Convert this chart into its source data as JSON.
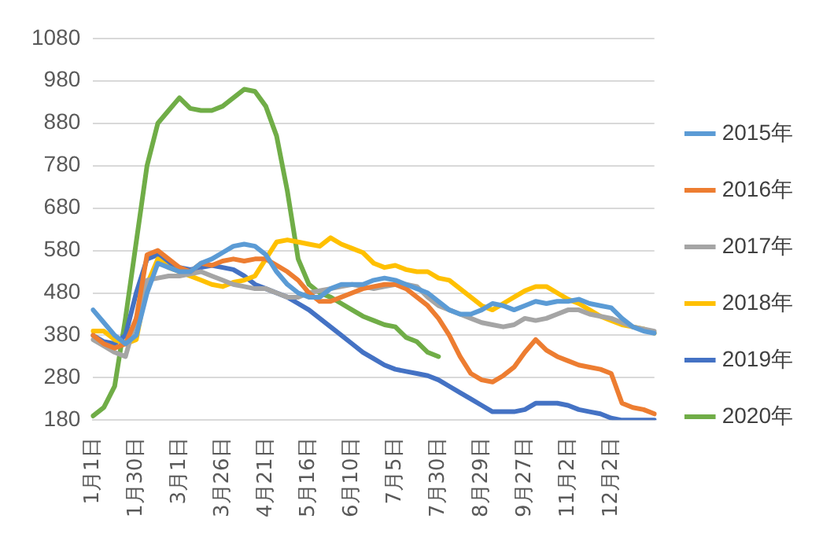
{
  "chart_data": {
    "type": "line",
    "categories": [
      "1月1日",
      null,
      null,
      null,
      "1月30日",
      null,
      null,
      null,
      "3月1日",
      null,
      null,
      null,
      "3月26日",
      null,
      null,
      null,
      "4月21日",
      null,
      null,
      null,
      "5月16日",
      null,
      null,
      null,
      "6月10日",
      null,
      null,
      null,
      "7月5日",
      null,
      null,
      null,
      "7月30日",
      null,
      null,
      null,
      "8月29日",
      null,
      null,
      null,
      "9月27日",
      null,
      null,
      null,
      "11月2日",
      null,
      null,
      null,
      "12月2日",
      null,
      null,
      null,
      null
    ],
    "series": [
      {
        "name": "2015年",
        "color": "#5b9bd5",
        "values": [
          440,
          410,
          380,
          360,
          380,
          480,
          550,
          540,
          530,
          530,
          550,
          560,
          575,
          590,
          595,
          590,
          570,
          530,
          500,
          480,
          470,
          470,
          490,
          500,
          500,
          500,
          510,
          515,
          510,
          500,
          490,
          480,
          460,
          440,
          430,
          430,
          440,
          455,
          450,
          440,
          450,
          460,
          455,
          460,
          460,
          465,
          455,
          450,
          445,
          420,
          400,
          390,
          385
        ]
      },
      {
        "name": "2016年",
        "color": "#ed7d31",
        "values": [
          380,
          360,
          350,
          360,
          420,
          570,
          580,
          560,
          540,
          530,
          550,
          545,
          555,
          560,
          555,
          560,
          560,
          545,
          530,
          510,
          480,
          460,
          460,
          470,
          480,
          490,
          495,
          500,
          500,
          490,
          470,
          450,
          420,
          380,
          330,
          290,
          275,
          270,
          285,
          305,
          340,
          370,
          345,
          330,
          320,
          310,
          305,
          300,
          290,
          220,
          210,
          205,
          195
        ]
      },
      {
        "name": "2017年",
        "color": "#a5a5a5",
        "values": [
          370,
          355,
          340,
          330,
          420,
          510,
          515,
          520,
          520,
          525,
          530,
          520,
          510,
          500,
          495,
          490,
          490,
          480,
          470,
          470,
          480,
          485,
          490,
          495,
          500,
          495,
          490,
          495,
          500,
          500,
          495,
          470,
          450,
          440,
          430,
          420,
          410,
          405,
          400,
          405,
          420,
          415,
          420,
          430,
          440,
          440,
          430,
          425,
          420,
          410,
          400,
          395,
          390
        ]
      },
      {
        "name": "2018年",
        "color": "#ffc000",
        "values": [
          390,
          390,
          370,
          360,
          370,
          500,
          560,
          540,
          530,
          520,
          510,
          500,
          495,
          505,
          510,
          520,
          560,
          600,
          605,
          600,
          595,
          590,
          610,
          595,
          585,
          575,
          550,
          540,
          545,
          535,
          530,
          530,
          515,
          510,
          490,
          470,
          450,
          440,
          455,
          470,
          485,
          495,
          495,
          480,
          465,
          455,
          440,
          425,
          415,
          405,
          400,
          395,
          385
        ]
      },
      {
        "name": "2019年",
        "color": "#4472c4",
        "values": [
          380,
          365,
          360,
          380,
          480,
          560,
          570,
          550,
          540,
          535,
          540,
          545,
          540,
          535,
          520,
          500,
          490,
          480,
          470,
          455,
          440,
          420,
          400,
          380,
          360,
          340,
          325,
          310,
          300,
          295,
          290,
          285,
          275,
          260,
          245,
          230,
          215,
          200,
          200,
          200,
          205,
          220,
          220,
          220,
          215,
          205,
          200,
          195,
          185,
          180,
          180,
          180,
          180
        ]
      },
      {
        "name": "2020年",
        "color": "#70ad47",
        "values": [
          190,
          210,
          260,
          420,
          600,
          780,
          880,
          910,
          940,
          915,
          910,
          910,
          920,
          940,
          960,
          955,
          920,
          850,
          720,
          560,
          500,
          480,
          470,
          455,
          440,
          425,
          415,
          405,
          400,
          375,
          365,
          340,
          330,
          null,
          null,
          null,
          null,
          null,
          null,
          null,
          null,
          null,
          null,
          null,
          null,
          null,
          null,
          null,
          null,
          null,
          null,
          null,
          null
        ]
      }
    ],
    "ylim": [
      180,
      1080
    ],
    "yticks": [
      180,
      280,
      380,
      480,
      580,
      680,
      780,
      880,
      980,
      1080
    ],
    "grid": "y",
    "legend": "right",
    "marker": "none",
    "line_style": "solid"
  }
}
